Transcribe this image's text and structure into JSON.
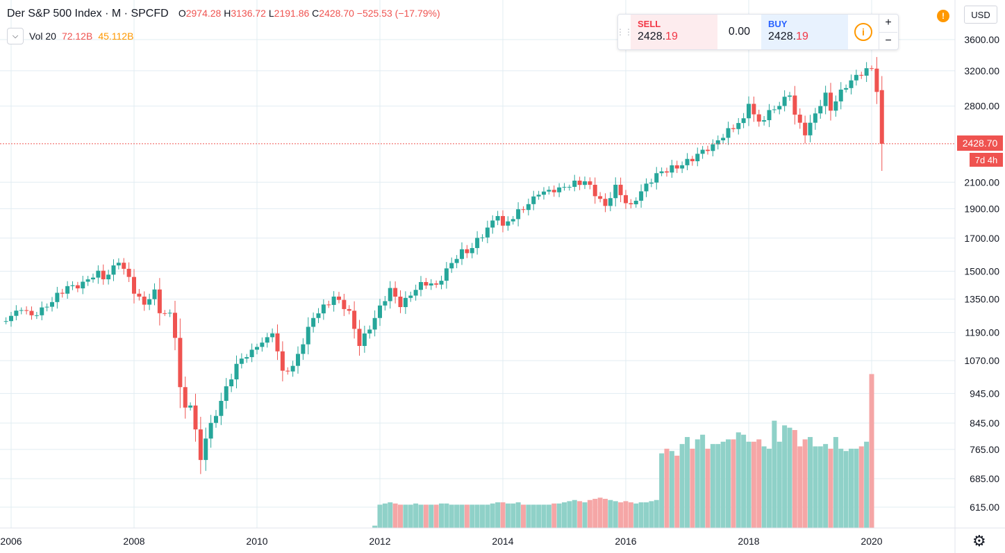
{
  "header": {
    "title": "Der S&P 500 Index · M · SPCFD",
    "ohlc": [
      {
        "k": "O",
        "v": "2974.28"
      },
      {
        "k": "H",
        "v": "3136.72"
      },
      {
        "k": "L",
        "v": "2191.86"
      },
      {
        "k": "C",
        "v": "2428.70"
      }
    ],
    "change": "−525.53 (−17.79%)"
  },
  "volume_legend": {
    "label": "Vol 20",
    "value": "72.12B",
    "ma": "45.112B"
  },
  "trade_panel": {
    "sell_label": "SELL",
    "sell_price_main": "2428.",
    "sell_price_hi": "19",
    "spread": "0.00",
    "buy_label": "BUY",
    "buy_price_main": "2428.",
    "buy_price_hi": "19",
    "zoom_in": "+",
    "zoom_out": "−",
    "info": "i"
  },
  "currency": "USD",
  "alert": "!",
  "last_price": "2428.70",
  "countdown": "7d 4h",
  "colors": {
    "up": "#26a69a",
    "down": "#ef5350",
    "up_vol": "#8fd1c8",
    "down_vol": "#f5a6a6",
    "grid": "#e1ecf2"
  },
  "chart_data": {
    "type": "candlestick",
    "title": "Der S&P 500 Index",
    "interval": "M",
    "y_scale": "log",
    "y_ticks": [
      "615.00",
      "685.00",
      "765.00",
      "845.00",
      "945.00",
      "1070.00",
      "1190.00",
      "1350.00",
      "1500.00",
      "1700.00",
      "1900.00",
      "2100.00",
      "2800.00",
      "3200.00",
      "3600.00"
    ],
    "x_ticks": [
      "2006",
      "2008",
      "2010",
      "2012",
      "2014",
      "2016",
      "2018",
      "2020"
    ],
    "ylim": [
      580,
      4000
    ],
    "grid": true,
    "current_price": 2428.7,
    "price_anchors": [
      [
        "2005-11",
        1240
      ],
      [
        "2006-03",
        1295
      ],
      [
        "2006-05",
        1270
      ],
      [
        "2006-06",
        1270
      ],
      [
        "2006-12",
        1418
      ],
      [
        "2007-02",
        1406
      ],
      [
        "2007-06",
        1503
      ],
      [
        "2007-07",
        1455
      ],
      [
        "2007-10",
        1549
      ],
      [
        "2007-12",
        1468
      ],
      [
        "2008-01",
        1378
      ],
      [
        "2008-03",
        1322
      ],
      [
        "2008-05",
        1400
      ],
      [
        "2008-06",
        1280
      ],
      [
        "2008-08",
        1282
      ],
      [
        "2008-09",
        1166
      ],
      [
        "2008-10",
        968
      ],
      [
        "2008-11",
        896
      ],
      [
        "2008-12",
        903
      ],
      [
        "2009-01",
        825
      ],
      [
        "2009-02",
        735
      ],
      [
        "2009-03",
        797
      ],
      [
        "2009-06",
        919
      ],
      [
        "2009-09",
        1057
      ],
      [
        "2009-12",
        1115
      ],
      [
        "2010-03",
        1169
      ],
      [
        "2010-04",
        1186
      ],
      [
        "2010-06",
        1030
      ],
      [
        "2010-08",
        1049
      ],
      [
        "2010-12",
        1257
      ],
      [
        "2011-04",
        1363
      ],
      [
        "2011-07",
        1292
      ],
      [
        "2011-09",
        1131
      ],
      [
        "2011-12",
        1257
      ],
      [
        "2012-03",
        1408
      ],
      [
        "2012-05",
        1310
      ],
      [
        "2012-09",
        1440
      ],
      [
        "2012-12",
        1426
      ],
      [
        "2013-05",
        1630
      ],
      [
        "2013-06",
        1606
      ],
      [
        "2013-12",
        1848
      ],
      [
        "2014-01",
        1782
      ],
      [
        "2014-08",
        2003
      ],
      [
        "2014-12",
        2059
      ],
      [
        "2015-05",
        2107
      ],
      [
        "2015-08",
        1972
      ],
      [
        "2015-09",
        1920
      ],
      [
        "2015-11",
        2080
      ],
      [
        "2016-01",
        1940
      ],
      [
        "2016-02",
        1932
      ],
      [
        "2016-07",
        2173
      ],
      [
        "2016-12",
        2239
      ],
      [
        "2017-06",
        2423
      ],
      [
        "2017-12",
        2674
      ],
      [
        "2018-01",
        2824
      ],
      [
        "2018-02",
        2714
      ],
      [
        "2018-03",
        2641
      ],
      [
        "2018-09",
        2914
      ],
      [
        "2018-10",
        2711
      ],
      [
        "2018-12",
        2507
      ],
      [
        "2019-04",
        2946
      ],
      [
        "2019-05",
        2752
      ],
      [
        "2019-07",
        2980
      ],
      [
        "2019-12",
        3231
      ],
      [
        "2020-01",
        3226
      ],
      [
        "2020-02",
        2954
      ],
      [
        "2020-03",
        2428.7
      ]
    ],
    "last_candle": {
      "date": "2020-03",
      "open": 2974.28,
      "high": 3136.72,
      "low": 2191.86,
      "close": 2428.7
    },
    "volume": {
      "start": "2011-12",
      "unit": "relative",
      "values": [
        0.1,
        1,
        1.05,
        1.1,
        1.05,
        1,
        1,
        1,
        1.05,
        1,
        1,
        1,
        1,
        1.05,
        1.05,
        1,
        1,
        1,
        1,
        1,
        1,
        1,
        1,
        1.05,
        1.1,
        1.1,
        1.05,
        1.05,
        1.1,
        1,
        1,
        1,
        1,
        1,
        1,
        1.05,
        1.05,
        1.1,
        1.15,
        1.2,
        1.15,
        1.1,
        1.2,
        1.25,
        1.3,
        1.25,
        1.2,
        1.15,
        1.1,
        1.15,
        1.1,
        1.05,
        1.1,
        1.1,
        1.15,
        1.2,
        3.2,
        3.4,
        3.3,
        3.1,
        3.6,
        3.9,
        3.4,
        3.8,
        4.0,
        3.4,
        3.6,
        3.6,
        3.7,
        3.8,
        3.8,
        4.1,
        4.0,
        3.7,
        3.7,
        3.8,
        3.5,
        3.4,
        4.6,
        3.7,
        4.4,
        4.3,
        4.2,
        3.5,
        3.8,
        3.9,
        3.5,
        3.5,
        3.6,
        3.4,
        3.9,
        3.4,
        3.3,
        3.4,
        3.4,
        3.5,
        3.7,
        6.6
      ],
      "ylim": [
        0,
        7
      ]
    }
  }
}
